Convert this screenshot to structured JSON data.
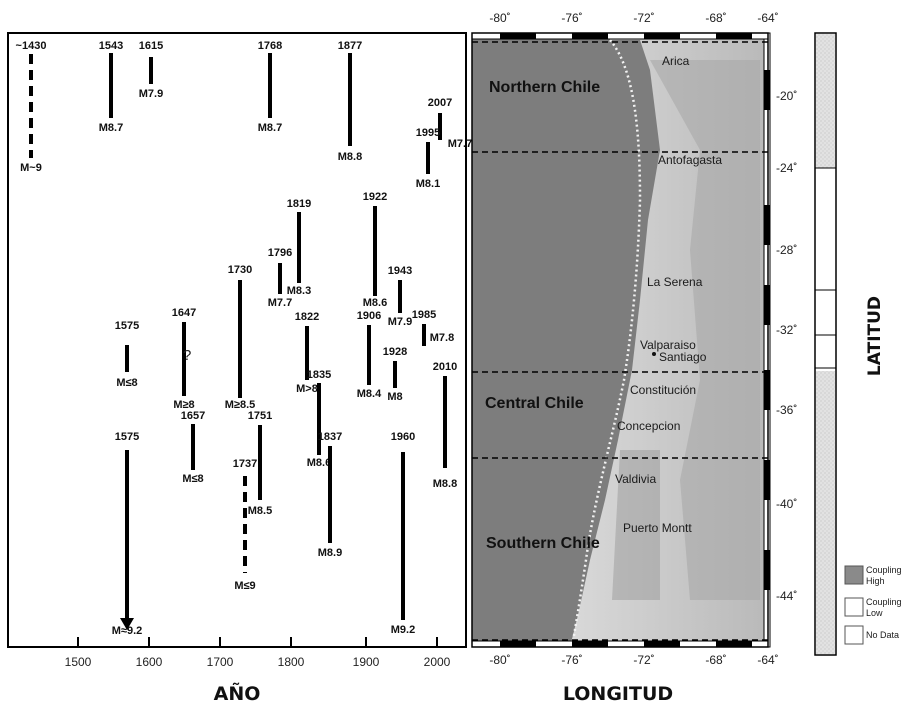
{
  "left_chart": {
    "xlabel": "AÑO",
    "x_ticks": [
      "1500",
      "1600",
      "1700",
      "1800",
      "1900",
      "2000"
    ],
    "question_mark": "?"
  },
  "map": {
    "xlabel": "LONGITUD",
    "lon_ticks_top": [
      "-80˚",
      "-76˚",
      "-72˚",
      "-68˚",
      "-64˚"
    ],
    "lon_ticks_bottom": [
      "-80˚",
      "-76˚",
      "-72˚",
      "-68˚",
      "-64˚"
    ],
    "lat_ticks": [
      "-20˚",
      "-24˚",
      "-28˚",
      "-32˚",
      "-36˚",
      "-40˚",
      "-44˚"
    ],
    "regions": [
      "Northern Chile",
      "Central Chile",
      "Southern Chile"
    ],
    "places": [
      "Arica",
      "Antofagasta",
      "La Serena",
      "Valparaiso",
      "Santiago",
      "Constitución",
      "Concepcion",
      "Valdivia",
      "Puerto Montt"
    ]
  },
  "latitude_label": "LATITUD",
  "legend": {
    "items": [
      {
        "label": "Coupling High",
        "color": "#8a8a8a"
      },
      {
        "label": "Coupling Low",
        "color": "#ffffff"
      },
      {
        "label": "No Data",
        "color": "#ffffff"
      }
    ]
  },
  "chart_data": {
    "type": "timeline",
    "xlabel": "AÑO",
    "xlim": [
      1450,
      2030
    ],
    "events": [
      {
        "year": "~1430",
        "magnitude": "M~9",
        "style": "dashed"
      },
      {
        "year": "1543",
        "magnitude": "M8.7"
      },
      {
        "year": "1615",
        "magnitude": "M7.9"
      },
      {
        "year": "1768",
        "magnitude": "M8.7"
      },
      {
        "year": "1877",
        "magnitude": "M8.8"
      },
      {
        "year": "2007",
        "magnitude": "M7.7"
      },
      {
        "year": "1995",
        "magnitude": "M8.1"
      },
      {
        "year": "1819",
        "magnitude": "M8.3"
      },
      {
        "year": "1922",
        "magnitude": "M8.6"
      },
      {
        "year": "1796",
        "magnitude": "M7.7"
      },
      {
        "year": "1943",
        "magnitude": "M7.9"
      },
      {
        "year": "1730",
        "magnitude": "M≥8.5"
      },
      {
        "year": "1647",
        "magnitude": "M≥8"
      },
      {
        "year": "1822",
        "magnitude": "M>8"
      },
      {
        "year": "1906",
        "magnitude": "M8.4"
      },
      {
        "year": "1985",
        "magnitude": "M7.8"
      },
      {
        "year": "1575",
        "magnitude": "M≤8"
      },
      {
        "year": "1928",
        "magnitude": "M8"
      },
      {
        "year": "2010",
        "magnitude": "M8.8"
      },
      {
        "year": "1835",
        "magnitude": "M8.6"
      },
      {
        "year": "1657",
        "magnitude": "M≤8"
      },
      {
        "year": "1751",
        "magnitude": "M8.5"
      },
      {
        "year": "1837",
        "magnitude": "M8.9"
      },
      {
        "year": "1737",
        "magnitude": "M≤9",
        "style": "dashed"
      },
      {
        "year": "1575",
        "magnitude": "M≈9.2",
        "style": "arrow"
      },
      {
        "year": "1960",
        "magnitude": "M9.2"
      }
    ]
  }
}
